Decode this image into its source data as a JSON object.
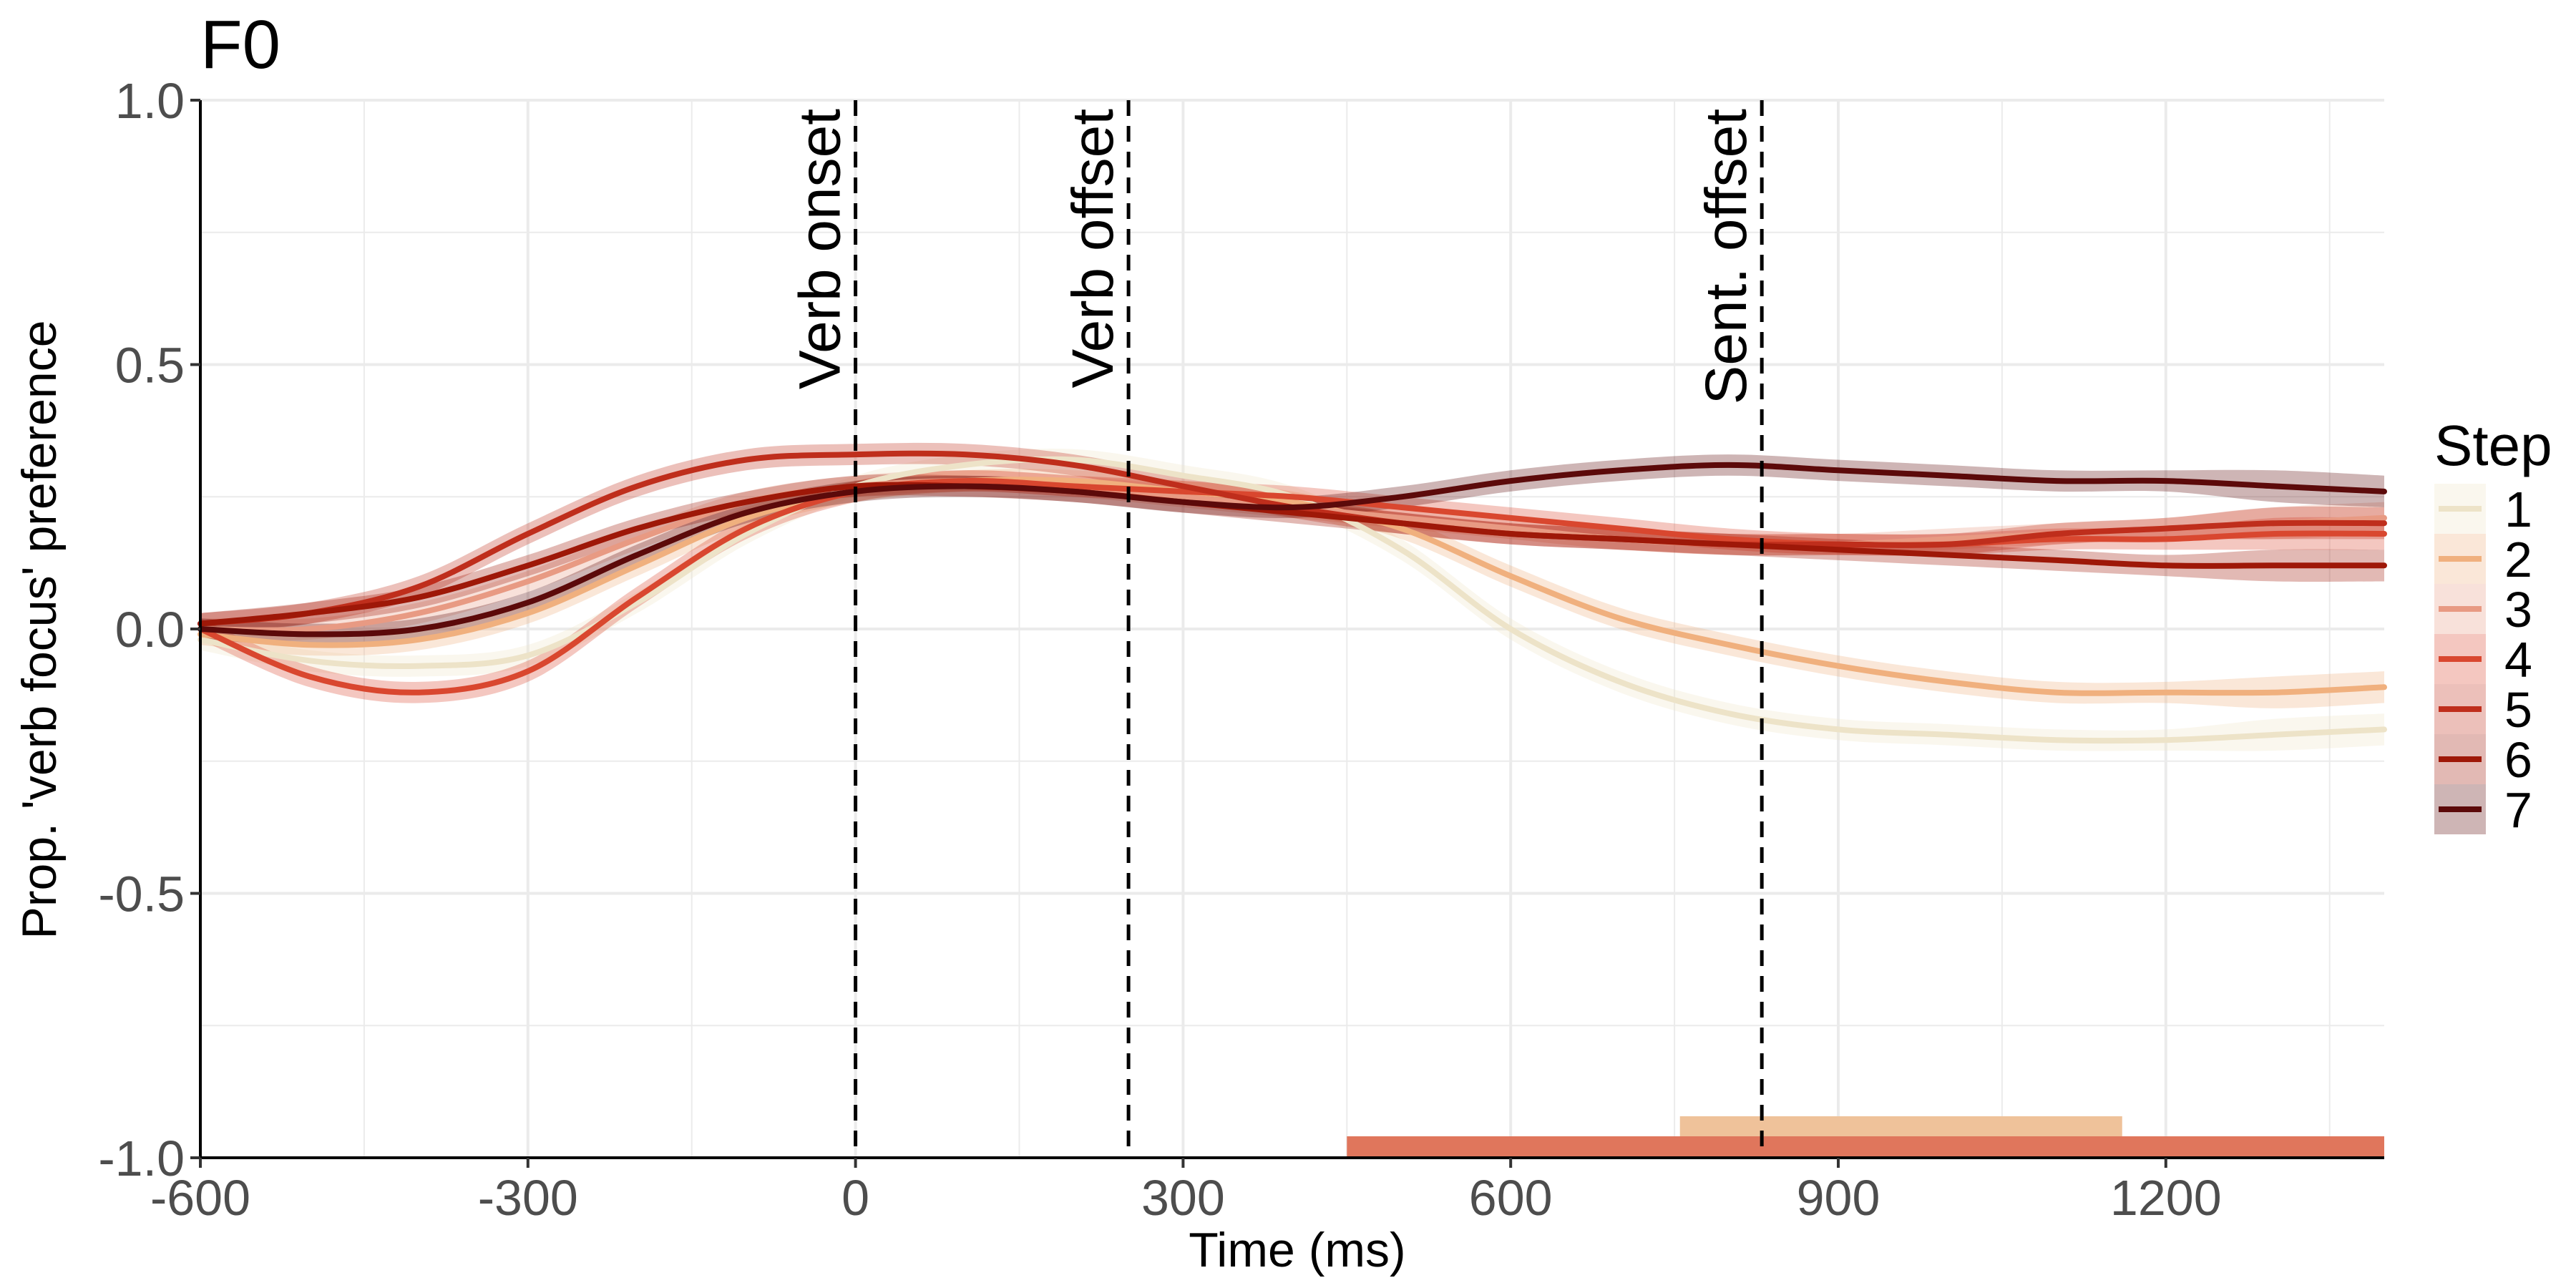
{
  "chart_data": {
    "type": "line",
    "title": "F0",
    "xlabel": "Time (ms)",
    "ylabel": "Prop. 'verb focus' preference",
    "xlim": [
      -600,
      1400
    ],
    "ylim": [
      -1.0,
      1.0
    ],
    "x_ticks": [
      -600,
      -300,
      0,
      300,
      600,
      900,
      1200
    ],
    "x_tick_labels": [
      "-600",
      "-300",
      "0",
      "300",
      "600",
      "900",
      "1200"
    ],
    "y_ticks": [
      -1.0,
      -0.5,
      0.0,
      0.5,
      1.0
    ],
    "y_tick_labels": [
      "-1.0",
      "-0.5",
      "0.0",
      "0.5",
      "1.0"
    ],
    "grid": true,
    "legend": {
      "title": "Step",
      "position": "right"
    },
    "events": [
      {
        "label": "Verb onset",
        "x": 0
      },
      {
        "label": "Verb offset",
        "x": 250
      },
      {
        "label": "Sent. offset",
        "x": 830
      }
    ],
    "x": [
      -600,
      -500,
      -400,
      -300,
      -200,
      -100,
      0,
      100,
      200,
      300,
      400,
      500,
      600,
      700,
      800,
      900,
      1000,
      1100,
      1200,
      1300,
      1400
    ],
    "series": [
      {
        "name": "1",
        "color": "#ede3c8",
        "values": [
          -0.02,
          -0.06,
          -0.07,
          -0.05,
          0.05,
          0.18,
          0.27,
          0.31,
          0.32,
          0.29,
          0.25,
          0.15,
          0.0,
          -0.1,
          -0.16,
          -0.19,
          -0.2,
          -0.21,
          -0.21,
          -0.2,
          -0.19
        ]
      },
      {
        "name": "2",
        "color": "#f0b07e",
        "values": [
          -0.01,
          -0.03,
          -0.02,
          0.03,
          0.12,
          0.21,
          0.26,
          0.28,
          0.28,
          0.26,
          0.24,
          0.19,
          0.1,
          0.02,
          -0.03,
          -0.07,
          -0.1,
          -0.12,
          -0.12,
          -0.12,
          -0.11
        ]
      },
      {
        "name": "3",
        "color": "#e89a83",
        "values": [
          0.0,
          0.0,
          0.03,
          0.09,
          0.17,
          0.24,
          0.27,
          0.28,
          0.27,
          0.25,
          0.23,
          0.21,
          0.19,
          0.17,
          0.16,
          0.16,
          0.17,
          0.18,
          0.19,
          0.2,
          0.21
        ]
      },
      {
        "name": "4",
        "color": "#d9472f",
        "values": [
          0.0,
          -0.09,
          -0.12,
          -0.08,
          0.06,
          0.19,
          0.26,
          0.28,
          0.27,
          0.26,
          0.25,
          0.23,
          0.21,
          0.19,
          0.17,
          0.16,
          0.16,
          0.17,
          0.17,
          0.18,
          0.18
        ]
      },
      {
        "name": "5",
        "color": "#bf2e1c",
        "values": [
          0.01,
          0.03,
          0.08,
          0.18,
          0.27,
          0.32,
          0.33,
          0.33,
          0.31,
          0.27,
          0.23,
          0.2,
          0.18,
          0.17,
          0.16,
          0.16,
          0.16,
          0.18,
          0.19,
          0.2,
          0.2
        ]
      },
      {
        "name": "6",
        "color": "#9e1808",
        "values": [
          0.01,
          0.03,
          0.06,
          0.12,
          0.19,
          0.24,
          0.27,
          0.27,
          0.26,
          0.24,
          0.22,
          0.2,
          0.18,
          0.17,
          0.16,
          0.15,
          0.14,
          0.13,
          0.12,
          0.12,
          0.12
        ]
      },
      {
        "name": "7",
        "color": "#5c0a0a",
        "values": [
          0.0,
          -0.01,
          0.0,
          0.05,
          0.14,
          0.22,
          0.26,
          0.27,
          0.26,
          0.24,
          0.23,
          0.25,
          0.28,
          0.3,
          0.31,
          0.3,
          0.29,
          0.28,
          0.28,
          0.27,
          0.26
        ]
      }
    ],
    "significance_bars": [
      {
        "series": "2",
        "color": "#efc29a",
        "x_start": 755,
        "x_end": 1160
      },
      {
        "series": "4",
        "color": "#e0765c",
        "x_start": 450,
        "x_end": 1400
      }
    ]
  }
}
